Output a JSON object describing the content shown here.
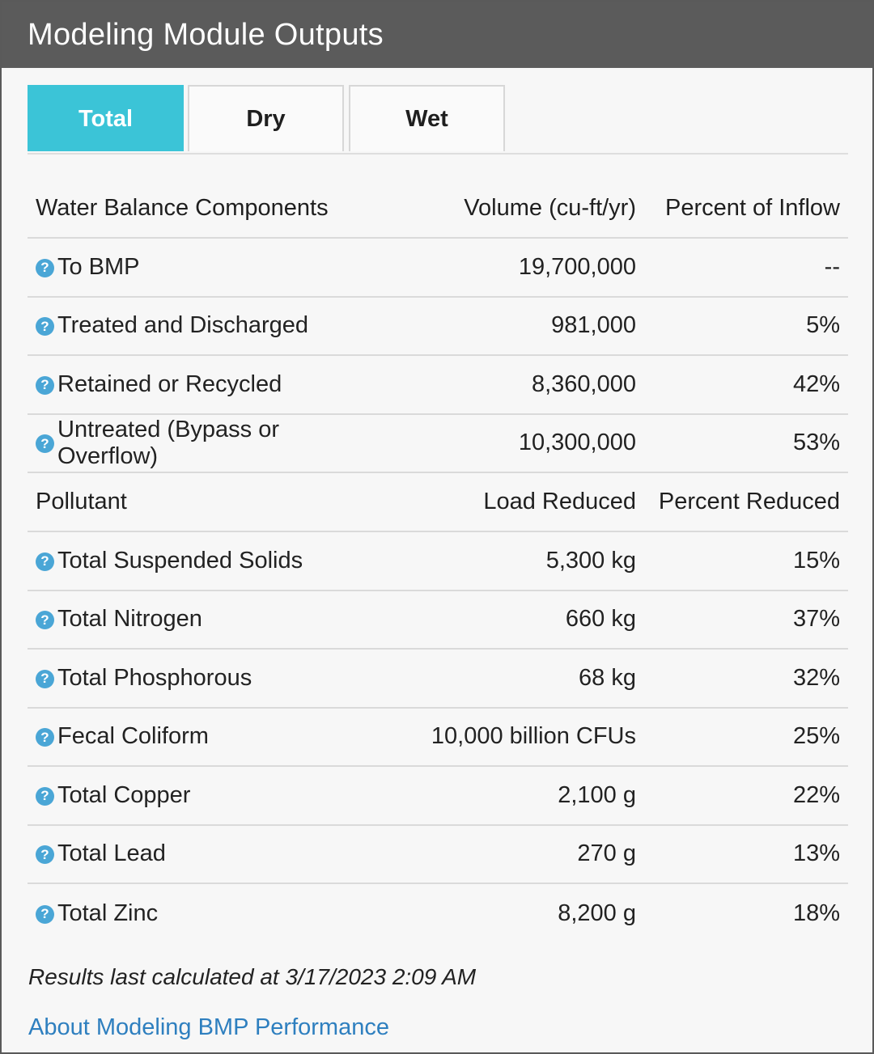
{
  "header": {
    "title": "Modeling Module Outputs"
  },
  "tabs": [
    {
      "label": "Total",
      "active": true
    },
    {
      "label": "Dry",
      "active": false
    },
    {
      "label": "Wet",
      "active": false
    }
  ],
  "water_balance": {
    "headers": [
      "Water Balance Components",
      "Volume (cu-ft/yr)",
      "Percent of Inflow"
    ],
    "rows": [
      {
        "name": "To BMP",
        "value": "19,700,000",
        "percent": "--"
      },
      {
        "name": "Treated and Discharged",
        "value": "981,000",
        "percent": "5%"
      },
      {
        "name": "Retained or Recycled",
        "value": "8,360,000",
        "percent": "42%"
      },
      {
        "name": "Untreated (Bypass or Overflow)",
        "value": "10,300,000",
        "percent": "53%"
      }
    ]
  },
  "pollutants": {
    "headers": [
      "Pollutant",
      "Load Reduced",
      "Percent Reduced"
    ],
    "rows": [
      {
        "name": "Total Suspended Solids",
        "value": "5,300 kg",
        "percent": "15%"
      },
      {
        "name": "Total Nitrogen",
        "value": "660 kg",
        "percent": "37%"
      },
      {
        "name": "Total Phosphorous",
        "value": "68 kg",
        "percent": "32%"
      },
      {
        "name": "Fecal Coliform",
        "value": "10,000 billion CFUs",
        "percent": "25%"
      },
      {
        "name": "Total Copper",
        "value": "2,100 g",
        "percent": "22%"
      },
      {
        "name": "Total Lead",
        "value": "270 g",
        "percent": "13%"
      },
      {
        "name": "Total Zinc",
        "value": "8,200 g",
        "percent": "18%"
      }
    ]
  },
  "help_icon_glyph": "?",
  "footer": {
    "note": "Results last calculated at 3/17/2023 2:09 AM",
    "link": "About Modeling BMP Performance"
  },
  "colors": {
    "header_bg": "#5b5b5b",
    "tab_active": "#3bc4d7",
    "help_icon": "#4aa6d6",
    "link": "#2e7fbf"
  }
}
